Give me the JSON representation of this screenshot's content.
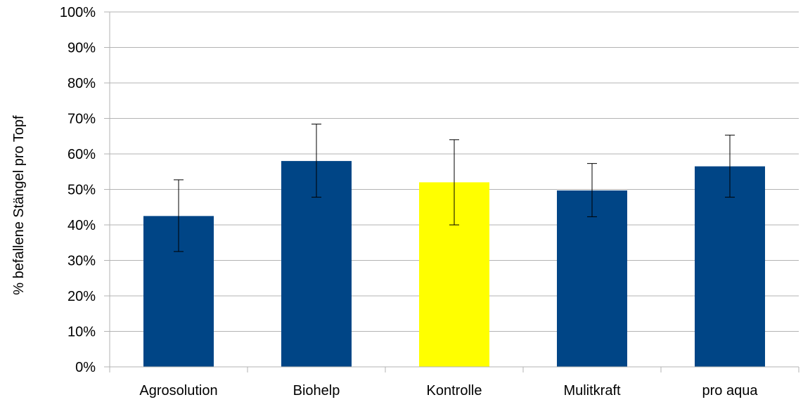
{
  "chart_data": {
    "type": "bar",
    "title": "",
    "xlabel": "",
    "ylabel": "% befallene Stängel pro Topf",
    "categories": [
      "Agrosolution",
      "Biohelp",
      "Kontrolle",
      "Mulitkraft",
      "pro aqua"
    ],
    "values": [
      0.425,
      0.58,
      0.52,
      0.497,
      0.565
    ],
    "error_low": [
      0.325,
      0.478,
      0.4,
      0.423,
      0.478
    ],
    "error_high": [
      0.527,
      0.684,
      0.64,
      0.573,
      0.653
    ],
    "y_ticks": [
      "0%",
      "10%",
      "20%",
      "30%",
      "40%",
      "50%",
      "60%",
      "70%",
      "80%",
      "90%",
      "100%"
    ],
    "ylim": [
      0,
      1
    ],
    "grid": true,
    "legend": "none",
    "colors": {
      "default_bar": "#004586",
      "highlight_bar": "#ffff00",
      "highlight_category": "Kontrolle",
      "grid": "#b3b3b3",
      "axis": "#b3b3b3",
      "error_bar": "#000000"
    }
  }
}
